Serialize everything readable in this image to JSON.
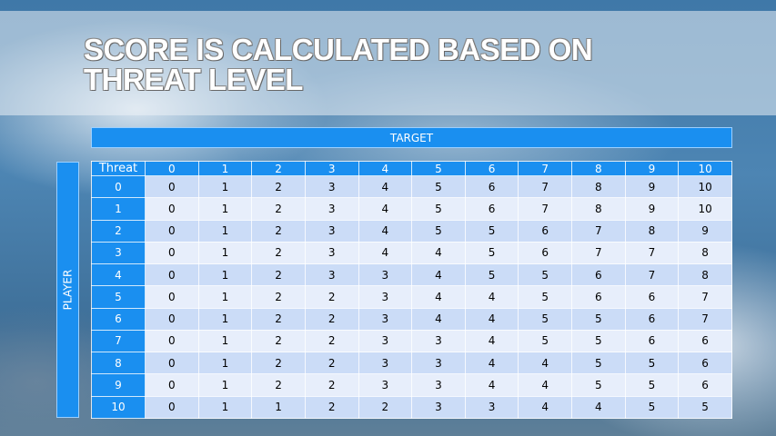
{
  "title": "Score is calculated based on threat level",
  "target_label": "TARGET",
  "player_label": "PLAYER",
  "colors": {
    "header": "#1a8ff0",
    "row_odd": "#cbdcf7",
    "row_even": "#e7eefb"
  },
  "table": {
    "corner_label": "Threat",
    "columns": [
      "0",
      "1",
      "2",
      "3",
      "4",
      "5",
      "6",
      "7",
      "8",
      "9",
      "10"
    ],
    "rows": [
      {
        "label": "0",
        "cells": [
          "0",
          "1",
          "2",
          "3",
          "4",
          "5",
          "6",
          "7",
          "8",
          "9",
          "10"
        ]
      },
      {
        "label": "1",
        "cells": [
          "0",
          "1",
          "2",
          "3",
          "4",
          "5",
          "6",
          "7",
          "8",
          "9",
          "10"
        ]
      },
      {
        "label": "2",
        "cells": [
          "0",
          "1",
          "2",
          "3",
          "4",
          "5",
          "5",
          "6",
          "7",
          "8",
          "9"
        ]
      },
      {
        "label": "3",
        "cells": [
          "0",
          "1",
          "2",
          "3",
          "4",
          "4",
          "5",
          "6",
          "7",
          "7",
          "8"
        ]
      },
      {
        "label": "4",
        "cells": [
          "0",
          "1",
          "2",
          "3",
          "3",
          "4",
          "5",
          "5",
          "6",
          "7",
          "8"
        ]
      },
      {
        "label": "5",
        "cells": [
          "0",
          "1",
          "2",
          "2",
          "3",
          "4",
          "4",
          "5",
          "6",
          "6",
          "7"
        ]
      },
      {
        "label": "6",
        "cells": [
          "0",
          "1",
          "2",
          "2",
          "3",
          "4",
          "4",
          "5",
          "5",
          "6",
          "7"
        ]
      },
      {
        "label": "7",
        "cells": [
          "0",
          "1",
          "2",
          "2",
          "3",
          "3",
          "4",
          "5",
          "5",
          "6",
          "6"
        ]
      },
      {
        "label": "8",
        "cells": [
          "0",
          "1",
          "2",
          "2",
          "3",
          "3",
          "4",
          "4",
          "5",
          "5",
          "6"
        ]
      },
      {
        "label": "9",
        "cells": [
          "0",
          "1",
          "2",
          "2",
          "3",
          "3",
          "4",
          "4",
          "5",
          "5",
          "6"
        ]
      },
      {
        "label": "10",
        "cells": [
          "0",
          "1",
          "1",
          "2",
          "2",
          "3",
          "3",
          "4",
          "4",
          "5",
          "5"
        ]
      }
    ]
  }
}
